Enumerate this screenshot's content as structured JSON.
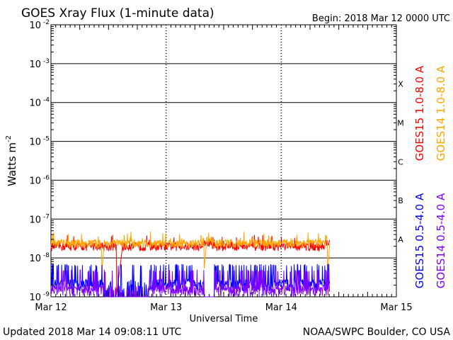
{
  "chart_data": {
    "type": "line",
    "title": "GOES Xray Flux (1-minute data)",
    "begin_label": "Begin:  2018 Mar 12 0000 UTC",
    "xlabel": "Universal Time",
    "ylabel": "Watts m",
    "ylabel_exponent": "-2",
    "y_scale": "log",
    "ylim": [
      1e-09,
      0.01
    ],
    "xlim": [
      "2018-03-12 00:00",
      "2018-03-15 00:00"
    ],
    "x_ticks": [
      {
        "label": "Mar 12",
        "day": 0
      },
      {
        "label": "Mar 13",
        "day": 1
      },
      {
        "label": "Mar 14",
        "day": 2
      },
      {
        "label": "Mar 15",
        "day": 3
      }
    ],
    "y_ticks": [
      {
        "mantissa": "10",
        "exp": "-9",
        "value": 1e-09
      },
      {
        "mantissa": "10",
        "exp": "-8",
        "value": 1e-08
      },
      {
        "mantissa": "10",
        "exp": "-7",
        "value": 1e-07
      },
      {
        "mantissa": "10",
        "exp": "-6",
        "value": 1e-06
      },
      {
        "mantissa": "10",
        "exp": "-5",
        "value": 1e-05
      },
      {
        "mantissa": "10",
        "exp": "-4",
        "value": 0.0001
      },
      {
        "mantissa": "10",
        "exp": "-3",
        "value": 0.001
      },
      {
        "mantissa": "10",
        "exp": "-2",
        "value": 0.01
      }
    ],
    "flare_classes": [
      {
        "label": "A",
        "value": 3e-08
      },
      {
        "label": "B",
        "value": 3e-07
      },
      {
        "label": "C",
        "value": 3e-06
      },
      {
        "label": "M",
        "value": 3e-05
      },
      {
        "label": "X",
        "value": 0.0003
      }
    ],
    "grid": true,
    "legend_position": "right",
    "series": [
      {
        "name": "GOES15 1.0-8.0 A",
        "color": "#ff0000",
        "base": 2e-08,
        "gaps": [
          [
            0.57,
            0.62,
            1.1e-09,
            1.8e-08
          ]
        ],
        "end_day": 2.42
      },
      {
        "name": "GOES14 1.0-8.0 A",
        "color": "#ffa500",
        "base": 2.4e-08,
        "gaps": [
          [
            0.44,
            0.46,
            3e-09,
            2.2e-08
          ],
          [
            1.33,
            1.35,
            5e-09,
            2.2e-08
          ],
          [
            2.4,
            2.42,
            3e-09,
            2.2e-08
          ]
        ],
        "end_day": 2.42
      },
      {
        "name": "GOES15 0.5-4.0 A",
        "color": "#0000ff",
        "base": 1.4e-09,
        "end_day": 2.42
      },
      {
        "name": "GOES14 0.5-4.0 A",
        "color": "#8000ff",
        "base": 1e-09,
        "end_day": 2.42
      }
    ]
  },
  "footer": {
    "updated": "Updated 2018 Mar 14 09:08:11 UTC",
    "source": "NOAA/SWPC Boulder, CO USA"
  }
}
